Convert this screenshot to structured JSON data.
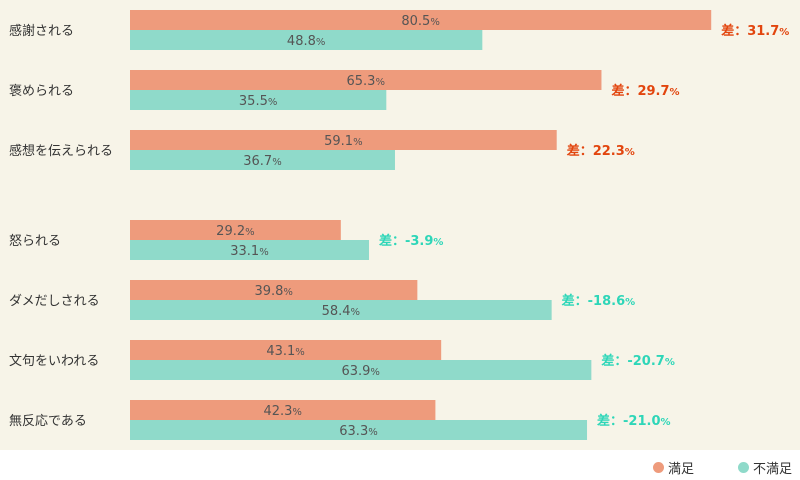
{
  "chart_data": {
    "type": "bar",
    "orientation": "horizontal",
    "xlim": [
      0,
      100
    ],
    "unit": "%",
    "diff_prefix": "差：",
    "colors": {
      "satisfied": "#ee9b7c",
      "unsatisfied": "#8fdaca",
      "diff_positive": "#e2450e",
      "diff_negative": "#2ed6b8"
    },
    "categories": [
      "感謝される",
      "褒められる",
      "感想を伝えられる",
      "怒られる",
      "ダメだしされる",
      "文句をいわれる",
      "無反応である"
    ],
    "series": [
      {
        "name": "満足",
        "values": [
          80.5,
          65.3,
          59.1,
          29.2,
          39.8,
          43.1,
          42.3
        ]
      },
      {
        "name": "不満足",
        "values": [
          48.8,
          35.5,
          36.7,
          33.1,
          58.4,
          63.9,
          63.3
        ]
      }
    ],
    "differences": [
      "31.7",
      "29.7",
      "22.3",
      "-3.9",
      "-18.6",
      "-20.7",
      "-21.0"
    ],
    "grid": false,
    "legend_position": "bottom-right"
  }
}
